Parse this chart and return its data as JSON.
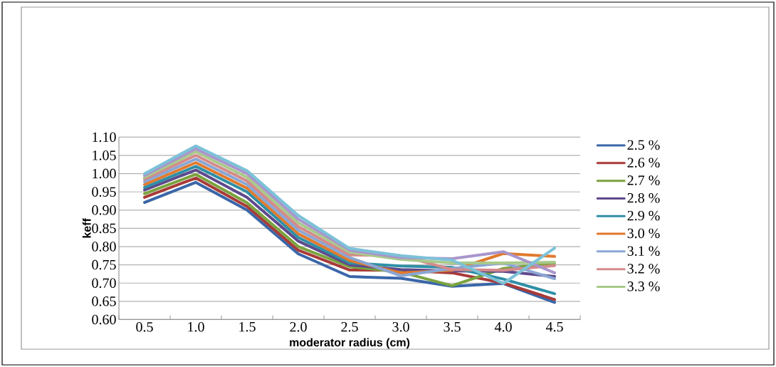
{
  "chart_data": {
    "type": "line",
    "xlabel": "moderator radius (cm)",
    "ylabel": "keff",
    "categories": [
      "0.5",
      "1.0",
      "1.5",
      "2.0",
      "2.5",
      "3.0",
      "3.5",
      "4.0",
      "4.5"
    ],
    "ylim": [
      0.6,
      1.1
    ],
    "yticks": [
      {
        "value": 0.6,
        "label": "0.60"
      },
      {
        "value": 0.65,
        "label": "0.65"
      },
      {
        "value": 0.7,
        "label": "0.70"
      },
      {
        "value": 0.75,
        "label": "0.75"
      },
      {
        "value": 0.8,
        "label": "0.80"
      },
      {
        "value": 0.85,
        "label": "0.85"
      },
      {
        "value": 0.9,
        "label": "0.90"
      },
      {
        "value": 0.95,
        "label": "0.95"
      },
      {
        "value": 1.0,
        "label": "1.00"
      },
      {
        "value": 1.05,
        "label": "1.05"
      },
      {
        "value": 1.1,
        "label": "1.10"
      }
    ],
    "grid": "y",
    "legend": "right",
    "marker": "none",
    "line_style": "solid",
    "series": [
      {
        "name": "2.5 %",
        "color": "#3a66a8",
        "values": [
          0.921,
          0.976,
          0.9,
          0.78,
          0.718,
          0.713,
          0.691,
          0.699,
          0.647
        ]
      },
      {
        "name": "2.6 %",
        "color": "#a83a38",
        "values": [
          0.935,
          0.988,
          0.91,
          0.79,
          0.736,
          0.735,
          0.728,
          0.7,
          0.655
        ]
      },
      {
        "name": "2.7 %",
        "color": "#7aa33e",
        "values": [
          0.945,
          0.998,
          0.92,
          0.8,
          0.745,
          0.73,
          0.693,
          0.74,
          0.755
        ]
      },
      {
        "name": "2.8 %",
        "color": "#5e4a8c",
        "values": [
          0.955,
          1.01,
          0.935,
          0.815,
          0.75,
          0.737,
          0.733,
          0.732,
          0.718
        ]
      },
      {
        "name": "2.9 %",
        "color": "#2f8fa6",
        "values": [
          0.962,
          1.02,
          0.95,
          0.825,
          0.755,
          0.747,
          0.743,
          0.711,
          0.671
        ]
      },
      {
        "name": "3.0 %",
        "color": "#e07a2e",
        "values": [
          0.97,
          1.03,
          0.96,
          0.835,
          0.762,
          0.728,
          0.735,
          0.781,
          0.773
        ]
      },
      {
        "name": "3.1 %",
        "color": "#8aa6d4",
        "values": [
          0.978,
          1.04,
          0.97,
          0.845,
          0.77,
          0.72,
          0.74,
          0.755,
          0.712
        ]
      },
      {
        "name": "3.2 %",
        "color": "#d48a8a",
        "values": [
          0.985,
          1.05,
          0.98,
          0.855,
          0.777,
          0.775,
          0.737,
          0.735,
          0.748
        ]
      },
      {
        "name": "3.3 %",
        "color": "#a9c98a",
        "values": [
          0.99,
          1.06,
          0.99,
          0.865,
          0.785,
          0.765,
          0.755,
          0.755,
          0.757
        ]
      },
      {
        "color": "#a996cc",
        "values": [
          0.995,
          1.068,
          1.0,
          0.875,
          0.79,
          0.77,
          0.767,
          0.786,
          0.728
        ]
      },
      {
        "color": "#7cc2d8",
        "values": [
          1.0,
          1.076,
          1.008,
          0.885,
          0.795,
          0.775,
          0.763,
          0.699,
          0.796
        ]
      }
    ]
  }
}
